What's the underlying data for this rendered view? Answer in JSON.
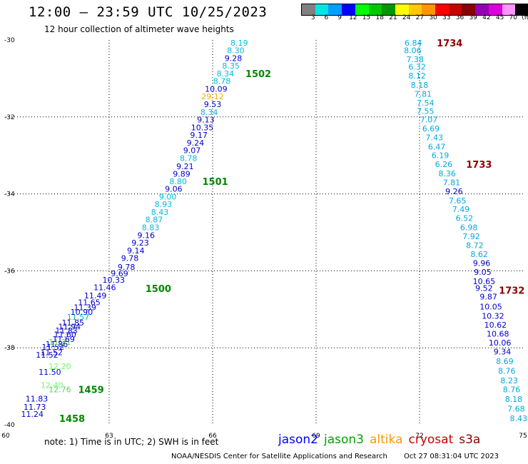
{
  "header": {
    "title": "12:00 – 23:59 UTC 10/25/2023",
    "subtitle": "12 hour collection of altimeter wave heights"
  },
  "colorbar": {
    "colors": [
      "#808080",
      "#00e5e5",
      "#00a0ff",
      "#0000ff",
      "#00ff00",
      "#00c800",
      "#009600",
      "#ffff00",
      "#ffc800",
      "#ff9600",
      "#ff0000",
      "#c80000",
      "#8c0000",
      "#9600b4",
      "#dc00dc",
      "#ff96ff",
      "#000000"
    ],
    "labels": [
      "3",
      "6",
      "9",
      "12",
      "15",
      "18",
      "21",
      "24",
      "27",
      "30",
      "33",
      "36",
      "39",
      "42",
      "45",
      "70",
      "(ft)"
    ]
  },
  "chart_data": {
    "type": "scatter",
    "xlim": [
      60,
      75
    ],
    "ylim": [
      -40,
      -30
    ],
    "x_ticks": [
      "60",
      "63",
      "66",
      "69",
      "72",
      "75"
    ],
    "y_ticks": [
      "-30",
      "-32",
      "-34",
      "-36",
      "-38",
      "-40"
    ],
    "grid": true,
    "legend_position": "bottom",
    "series": [
      {
        "name": "jason2",
        "color": "#0000ff",
        "points": []
      },
      {
        "name": "jason3",
        "color": "#00a000",
        "points": []
      },
      {
        "name": "altika",
        "color": "#ff9600",
        "points": []
      },
      {
        "name": "cryosat",
        "color": "#cc0000",
        "points": []
      },
      {
        "name": "s3a",
        "color": "#8c0000",
        "points": []
      }
    ],
    "tracks": [
      {
        "color": "#0000cc",
        "points": [
          [
            60.77,
            -39.72,
            "11.24"
          ],
          [
            60.84,
            -39.54,
            "11.73"
          ],
          [
            60.9,
            -39.32,
            "11.83"
          ],
          [
            61.57,
            -39.08,
            "12.76",
            "#66cc66"
          ],
          [
            61.34,
            -38.97,
            "12.40",
            "#66ff66"
          ],
          [
            61.28,
            -38.63,
            "11.50"
          ],
          [
            61.57,
            -38.48,
            "12.20",
            "#66ff66"
          ],
          [
            61.2,
            -38.18,
            "11.52"
          ],
          [
            61.33,
            -38.12,
            "11.52"
          ],
          [
            61.37,
            -37.98,
            "11.52"
          ],
          [
            61.48,
            -37.9,
            "11.86"
          ],
          [
            61.57,
            -37.85,
            "11.21",
            "#66cc66"
          ],
          [
            61.68,
            -37.77,
            "11.69"
          ],
          [
            61.72,
            -37.65,
            "11.60"
          ],
          [
            61.76,
            -37.55,
            "11.83"
          ],
          [
            61.85,
            -37.45,
            "11.94"
          ],
          [
            61.95,
            -37.35,
            "11.85"
          ],
          [
            62.1,
            -37.2,
            "11.57",
            "#00bbbb"
          ],
          [
            62.2,
            -37.07,
            "10.90"
          ],
          [
            62.3,
            -36.95,
            "11.39"
          ],
          [
            62.42,
            -36.82,
            "11.65"
          ],
          [
            62.6,
            -36.64,
            "11.49"
          ],
          [
            62.87,
            -36.43,
            "11.46"
          ],
          [
            63.13,
            -36.23,
            "10.33"
          ],
          [
            63.3,
            -36.07,
            "9.69"
          ],
          [
            63.5,
            -35.9,
            "9.78"
          ],
          [
            63.6,
            -35.67,
            "9.78"
          ],
          [
            63.77,
            -35.47,
            "9.14"
          ],
          [
            63.9,
            -35.27,
            "9.23"
          ],
          [
            64.07,
            -35.07,
            "9.16"
          ],
          [
            64.2,
            -34.87,
            "8.83",
            "#00bbdd"
          ],
          [
            64.3,
            -34.67,
            "8.87",
            "#00bbdd"
          ],
          [
            64.47,
            -34.47,
            "8.43",
            "#00bbdd"
          ],
          [
            64.57,
            -34.27,
            "8.93",
            "#00bbdd"
          ],
          [
            64.7,
            -34.07,
            "9.00",
            "#00bbdd"
          ],
          [
            64.87,
            -33.87,
            "9.06"
          ],
          [
            65.0,
            -33.67,
            "8.80",
            "#00bbdd"
          ],
          [
            65.1,
            -33.48,
            "9.89"
          ],
          [
            65.2,
            -33.28,
            "9.21"
          ],
          [
            65.3,
            -33.07,
            "8.78",
            "#00bbdd"
          ],
          [
            65.4,
            -32.87,
            "9.07"
          ],
          [
            65.5,
            -32.67,
            "9.24"
          ],
          [
            65.6,
            -32.47,
            "9.17"
          ],
          [
            65.7,
            -32.27,
            "10.35"
          ],
          [
            65.8,
            -32.07,
            "9.13"
          ],
          [
            65.9,
            -31.87,
            "8.34",
            "#00bbdd"
          ],
          [
            66.0,
            -31.67,
            "9.53"
          ],
          [
            66.0,
            -31.47,
            "29.12",
            "#ffaa00"
          ],
          [
            66.1,
            -31.27,
            "10.09"
          ],
          [
            66.27,
            -31.07,
            "8.78",
            "#00bbdd"
          ],
          [
            66.37,
            -30.87,
            "8.34",
            "#00bbdd"
          ],
          [
            66.53,
            -30.67,
            "8.35",
            "#00bbdd"
          ],
          [
            66.6,
            -30.47,
            "9.28"
          ],
          [
            66.67,
            -30.27,
            "8.30",
            "#00bbdd"
          ],
          [
            66.77,
            -30.07,
            "8.19",
            "#00bbdd"
          ]
        ]
      },
      {
        "color": "#00aadd",
        "points": [
          [
            71.82,
            -30.07,
            "6.84"
          ],
          [
            71.8,
            -30.27,
            "8.06"
          ],
          [
            71.87,
            -30.5,
            "7.38"
          ],
          [
            71.93,
            -30.7,
            "6.32"
          ],
          [
            71.93,
            -30.93,
            "8.12"
          ],
          [
            72.0,
            -31.17,
            "8.18"
          ],
          [
            72.1,
            -31.4,
            "7.81"
          ],
          [
            72.17,
            -31.63,
            "7.54"
          ],
          [
            72.17,
            -31.85,
            "7.55"
          ],
          [
            72.27,
            -32.07,
            "7.07"
          ],
          [
            72.33,
            -32.3,
            "6.69"
          ],
          [
            72.43,
            -32.53,
            "7.43"
          ],
          [
            72.5,
            -32.77,
            "6.47"
          ],
          [
            72.6,
            -33.0,
            "6.19"
          ],
          [
            72.7,
            -33.23,
            "6.26"
          ],
          [
            72.8,
            -33.47,
            "8.36"
          ],
          [
            72.93,
            -33.7,
            "7.81"
          ],
          [
            73.0,
            -33.93,
            "9.26",
            "#0000cc"
          ],
          [
            73.1,
            -34.17,
            "7.65"
          ],
          [
            73.2,
            -34.4,
            "7.49"
          ],
          [
            73.3,
            -34.63,
            "6.52"
          ],
          [
            73.43,
            -34.87,
            "6.98"
          ],
          [
            73.5,
            -35.1,
            "7.92"
          ],
          [
            73.6,
            -35.33,
            "8.72"
          ],
          [
            73.73,
            -35.57,
            "8.62"
          ],
          [
            73.8,
            -35.8,
            "9.96",
            "#0000cc"
          ],
          [
            73.83,
            -36.03,
            "9.05",
            "#0000cc"
          ],
          [
            73.87,
            -36.27,
            "10.65",
            "#0000cc"
          ],
          [
            73.87,
            -36.45,
            "9.52",
            "#0000cc"
          ],
          [
            74.0,
            -36.67,
            "9.87",
            "#0000cc"
          ],
          [
            74.07,
            -36.93,
            "10.05",
            "#0000cc"
          ],
          [
            74.13,
            -37.17,
            "10.32",
            "#0000cc"
          ],
          [
            74.2,
            -37.4,
            "10.62",
            "#0000cc"
          ],
          [
            74.27,
            -37.63,
            "10.68",
            "#0000cc"
          ],
          [
            74.33,
            -37.87,
            "10.06",
            "#0000cc"
          ],
          [
            74.4,
            -38.1,
            "9.34",
            "#0000cc"
          ],
          [
            74.47,
            -38.35,
            "8.69"
          ],
          [
            74.53,
            -38.6,
            "8.76"
          ],
          [
            74.6,
            -38.85,
            "8.23"
          ],
          [
            74.67,
            -39.08,
            "8.76"
          ],
          [
            74.73,
            -39.33,
            "8.18"
          ],
          [
            74.8,
            -39.58,
            "7.68"
          ],
          [
            74.87,
            -39.83,
            "8.43"
          ]
        ]
      }
    ],
    "time_labels": [
      {
        "x": 61.55,
        "y": -39.83,
        "text": "1458",
        "color": "#008800"
      },
      {
        "x": 62.1,
        "y": -39.08,
        "text": "1459",
        "color": "#008800"
      },
      {
        "x": 64.05,
        "y": -36.46,
        "text": "1500",
        "color": "#008800"
      },
      {
        "x": 65.7,
        "y": -33.67,
        "text": "1501",
        "color": "#008800"
      },
      {
        "x": 66.95,
        "y": -30.87,
        "text": "1502",
        "color": "#008800"
      },
      {
        "x": 72.5,
        "y": -30.07,
        "text": "1734",
        "color": "#8c0000"
      },
      {
        "x": 73.35,
        "y": -33.23,
        "text": "1733",
        "color": "#8c0000"
      },
      {
        "x": 74.3,
        "y": -36.5,
        "text": "1732",
        "color": "#8c0000"
      }
    ]
  },
  "footer": {
    "note": "note:  1) Time is in UTC;  2) SWH is in feet",
    "credit": "NOAA/NESDIS Center for Satellite Applications and Research",
    "timestamp": "Oct 27 08:31:04 UTC 2023"
  }
}
